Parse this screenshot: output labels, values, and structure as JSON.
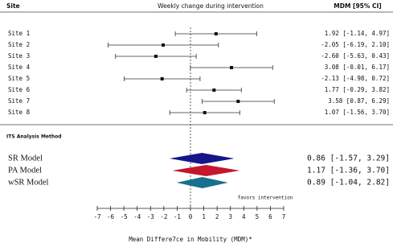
{
  "chart_data": {
    "type": "forest",
    "header": {
      "label_column": "Site",
      "plot_column": "Weekly change during intervention",
      "value_column": "MDM [95% CI]"
    },
    "categories": [
      "Site 1",
      "Site 2",
      "Site 3",
      "Site 4",
      "Site 5",
      "Site 6",
      "Site 7",
      "Site 8"
    ],
    "values": [
      1.92,
      -2.05,
      -2.6,
      3.08,
      -2.13,
      1.77,
      3.58,
      1.07
    ],
    "lower": [
      -1.14,
      -6.19,
      -5.63,
      -0.01,
      -4.98,
      -0.29,
      0.87,
      -1.56
    ],
    "upper": [
      4.97,
      2.1,
      0.43,
      6.17,
      0.72,
      3.82,
      6.29,
      3.7
    ],
    "value_labels": [
      "1.92 [-1.14, 4.97]",
      "-2.05 [-6.19, 2.10]",
      "-2.60 [-5.63, 0.43]",
      "3.08 [-0.01, 6.17]",
      "-2.13 [-4.98, 0.72]",
      "1.77 [-0.29, 3.82]",
      "3.58 [0.87, 6.29]",
      "1.07 [-1.56, 3.70]"
    ],
    "pooled": {
      "title": "ITS Analysis Method",
      "categories": [
        "SR Model",
        "PA Model",
        "wSR Model"
      ],
      "values": [
        0.86,
        1.17,
        0.89
      ],
      "lower": [
        -1.57,
        -1.36,
        -1.04
      ],
      "upper": [
        3.29,
        3.7,
        2.82
      ],
      "value_labels": [
        "0.86 [-1.57, 3.29]",
        "1.17 [-1.36, 3.70]",
        "0.89 [-1.04, 2.82]"
      ],
      "colors": [
        "#16168a",
        "#c4162c",
        "#17708f"
      ]
    },
    "annotation": "favors intervention",
    "xlabel": "Mean Differe7ce in Mobility (MDM)*",
    "xlim": [
      -7,
      7
    ],
    "xticks": [
      -7,
      -6,
      -5,
      -4,
      -3,
      -2,
      -1,
      0,
      1,
      2,
      3,
      4,
      5,
      6,
      7
    ]
  }
}
